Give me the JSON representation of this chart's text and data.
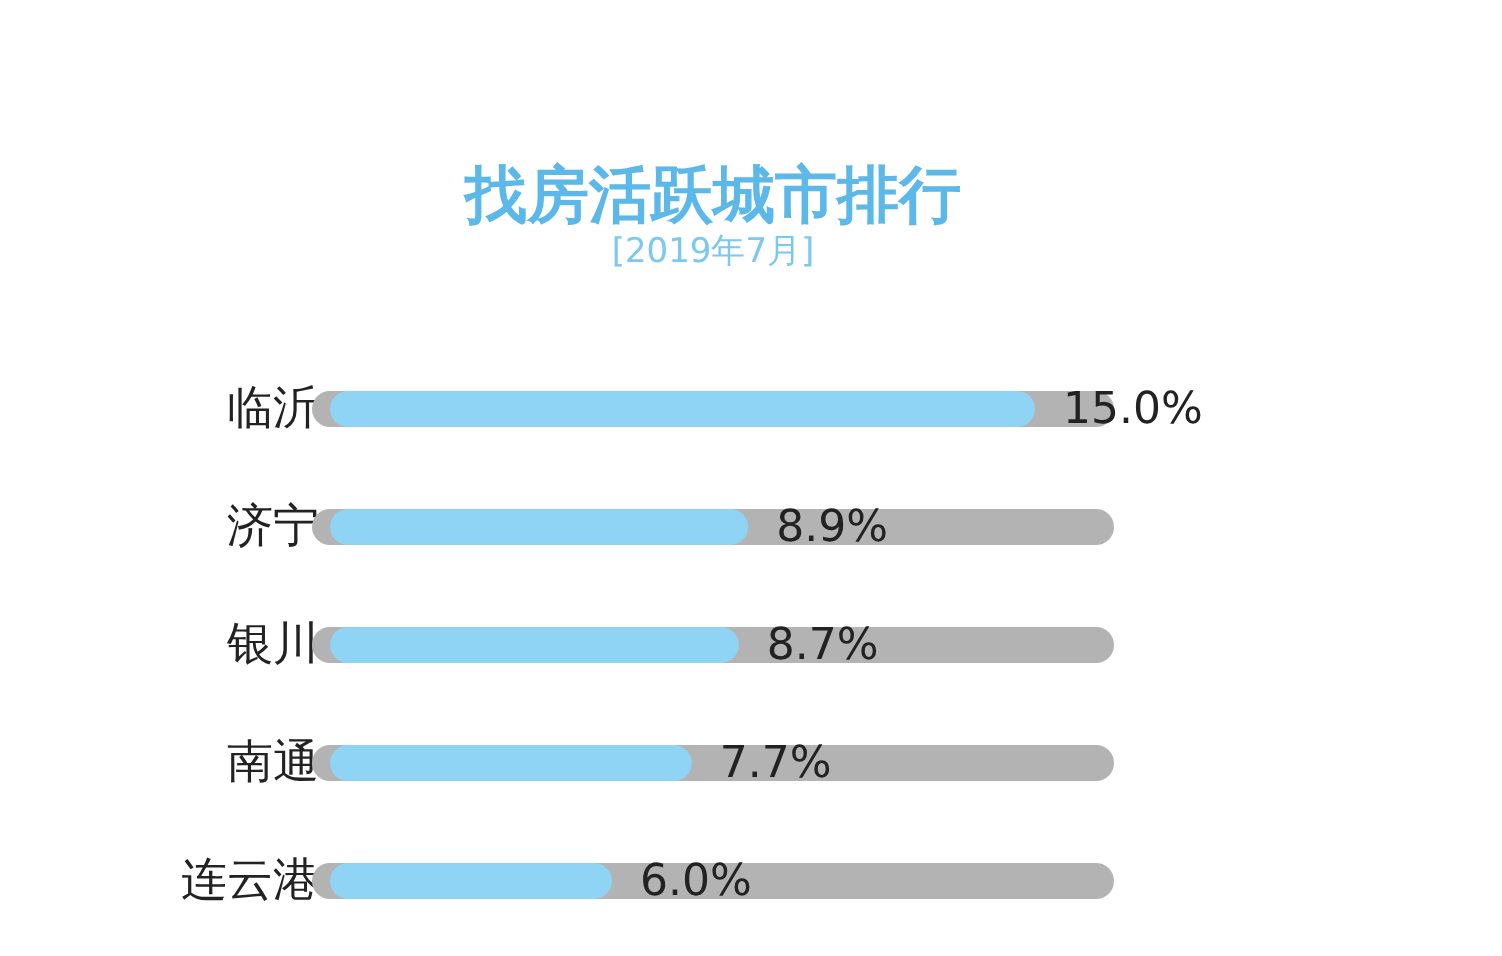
{
  "chart_data": {
    "type": "bar",
    "orientation": "horizontal",
    "title": "找房活跃城市排行",
    "subtitle": "[2019年7月]",
    "categories": [
      "临沂",
      "济宁",
      "银川",
      "南通",
      "连云港"
    ],
    "values": [
      15.0,
      8.9,
      8.7,
      7.7,
      6.0
    ],
    "value_labels": [
      "15.0%",
      "8.9%",
      "8.7%",
      "7.7%",
      "6.0%"
    ],
    "color": "#8fd4f5",
    "xlim": [
      0,
      16.3
    ],
    "tick_labels": "y",
    "grid": false
  }
}
